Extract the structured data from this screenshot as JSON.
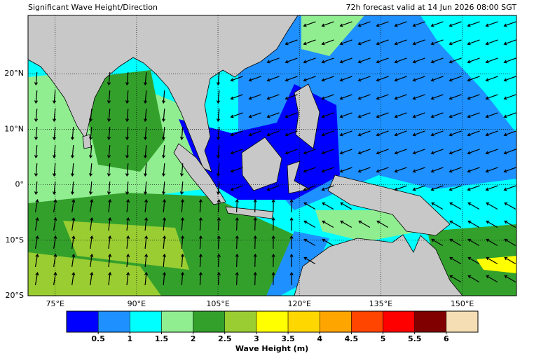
{
  "chart_data": {
    "type": "map",
    "title": "Significant Wave Height/Direction",
    "subtitle": "72h forecast valid at 14 Jun 2026 08:00 SGT",
    "xlim": [
      70,
      160
    ],
    "ylim": [
      -20,
      30.5
    ],
    "xticks": [
      {
        "value": 75,
        "label": "75°E"
      },
      {
        "value": 90,
        "label": "90°E"
      },
      {
        "value": 105,
        "label": "105°E"
      },
      {
        "value": 120,
        "label": "120°E"
      },
      {
        "value": 135,
        "label": "135°E"
      },
      {
        "value": 150,
        "label": "150°E"
      }
    ],
    "yticks": [
      {
        "value": -20,
        "label": "20°S"
      },
      {
        "value": -10,
        "label": "10°S"
      },
      {
        "value": 0,
        "label": "0°"
      },
      {
        "value": 10,
        "label": "10°N"
      },
      {
        "value": 20,
        "label": "20°N"
      }
    ],
    "grid": true,
    "colorbar": {
      "label": "Wave Height (m)",
      "lim": [
        0,
        6.5
      ],
      "colors": [
        "#0000ff",
        "#1e90ff",
        "#00ffff",
        "#90ee90",
        "#33a02c",
        "#9acd32",
        "#ffff00",
        "#ffd700",
        "#ffa500",
        "#ff4500",
        "#ff0000",
        "#800000",
        "#f5deb3"
      ],
      "ticks": [
        0.5,
        1,
        1.5,
        2,
        2.5,
        3,
        3.5,
        4,
        4.5,
        5,
        5.5,
        6
      ]
    }
  }
}
